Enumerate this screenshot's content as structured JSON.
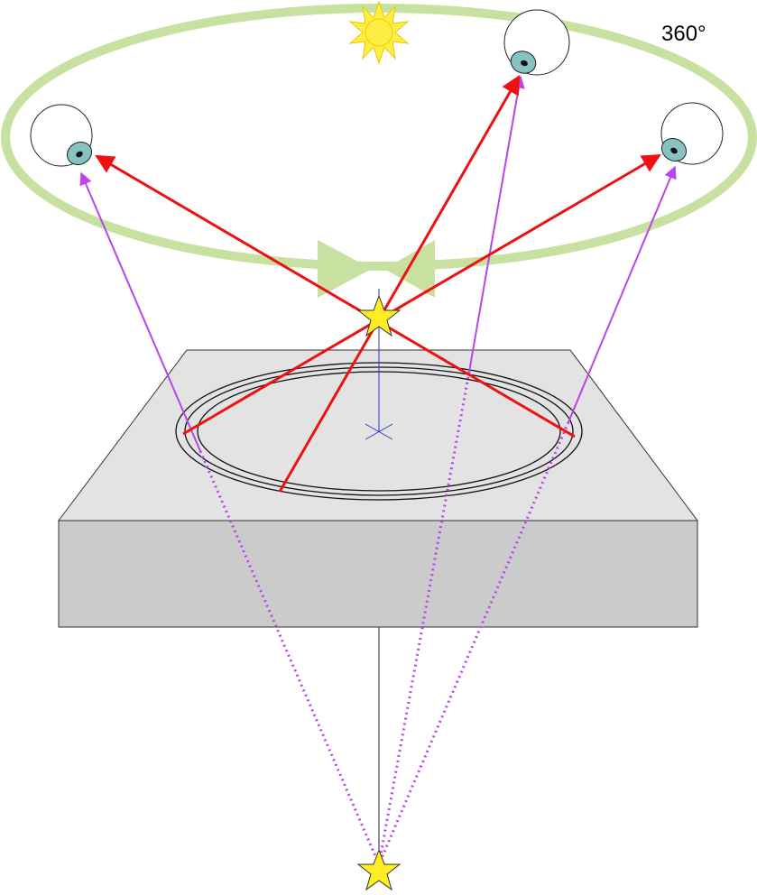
{
  "diagram": {
    "angle_label": "360°",
    "icons": {
      "light_source": "sun-icon",
      "viewer": "eye-icon",
      "real_point": "star-icon",
      "virtual_point": "star-icon"
    },
    "colors": {
      "orbit": "#c8e0a0",
      "real_rays": "#ee1111",
      "virtual_rays": "#bb44ee",
      "axis": "#2a3ad0",
      "slab_top": "#e3e3e3",
      "slab_front": "#cbcbcb",
      "sun": "#ffee44",
      "star": "#ffee22",
      "iris": "#86c2c2"
    }
  }
}
